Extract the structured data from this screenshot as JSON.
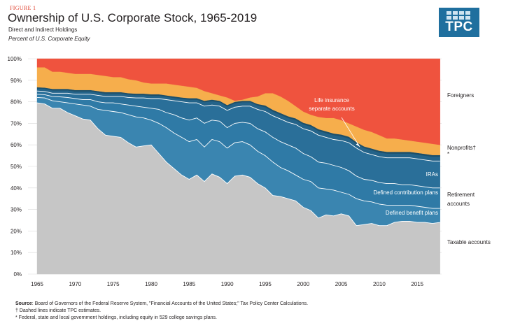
{
  "header": {
    "figure_label": "FIGURE 1",
    "title": "Ownership of U.S. Corporate Stock, 1965-2019",
    "subtitle": "Direct and Indirect Holdings",
    "unit_label": "Percent of U.S. Corporate Equity"
  },
  "logo": {
    "text": "TPC",
    "color": "#1f6f9e"
  },
  "chart_data": {
    "type": "area",
    "stacking": "cumulative",
    "x": [
      1965,
      1966,
      1967,
      1968,
      1969,
      1970,
      1971,
      1972,
      1973,
      1974,
      1975,
      1976,
      1977,
      1978,
      1979,
      1980,
      1981,
      1982,
      1983,
      1984,
      1985,
      1986,
      1987,
      1988,
      1989,
      1990,
      1991,
      1992,
      1993,
      1994,
      1995,
      1996,
      1997,
      1998,
      1999,
      2000,
      2001,
      2002,
      2003,
      2004,
      2005,
      2006,
      2007,
      2008,
      2009,
      2010,
      2011,
      2012,
      2013,
      2014,
      2015,
      2016,
      2017,
      2018
    ],
    "xlim": [
      1963.8,
      2018.2
    ],
    "x_ticks": [
      "1965",
      "1970",
      "1975",
      "1980",
      "1985",
      "1990",
      "1995",
      "2000",
      "2005",
      "2010",
      "2015"
    ],
    "ylim": [
      0,
      100
    ],
    "y_ticks": [
      "0%",
      "10%",
      "20%",
      "30%",
      "40%",
      "50%",
      "60%",
      "70%",
      "80%",
      "90%",
      "100%"
    ],
    "grid": "horizontal",
    "series": [
      {
        "name": "Taxable accounts",
        "color": "#c6c6c6",
        "values": [
          79.5,
          79,
          77,
          77,
          75,
          73.5,
          72,
          71.5,
          67.5,
          64.5,
          64,
          63.5,
          61,
          59,
          59.5,
          60,
          56,
          52,
          49,
          46,
          44,
          46,
          43,
          46.5,
          45,
          42,
          45.5,
          46,
          45,
          42,
          40,
          36.5,
          36,
          35,
          34,
          31,
          29.5,
          26,
          27.5,
          27,
          28,
          27,
          22.5,
          23,
          23.5,
          22.5,
          22.5,
          24,
          24.5,
          24.5,
          24,
          24,
          23.5,
          24
        ]
      },
      {
        "name": "Defined benefit plans",
        "color": "#3a85b0",
        "values": [
          82,
          81.8,
          80.5,
          80,
          79.5,
          79,
          78.5,
          78,
          76.5,
          76,
          75.5,
          75,
          74,
          73,
          72.5,
          71.5,
          70,
          68,
          65.5,
          63.5,
          61.5,
          62.5,
          59,
          62.5,
          61.5,
          58.5,
          61,
          61.5,
          60,
          57,
          55,
          52,
          49.5,
          48,
          46,
          44,
          43,
          40,
          39.5,
          39,
          38,
          37,
          35,
          34,
          33.5,
          32.5,
          32,
          32,
          32,
          32,
          31.5,
          31,
          30.5,
          30.5
        ]
      },
      {
        "name": "Defined contribution plans",
        "color": "#2f7aa6",
        "values": [
          83.5,
          83.3,
          82.5,
          82.3,
          82,
          81.5,
          81,
          81,
          80,
          79.5,
          79.5,
          79,
          78.5,
          78,
          77.5,
          77,
          76.5,
          75,
          74,
          72.5,
          71.5,
          72.5,
          70,
          71.5,
          71,
          68,
          70,
          70.5,
          70,
          67.5,
          66,
          63.5,
          61.5,
          60,
          58.5,
          56,
          54.5,
          52,
          51.5,
          50.5,
          49.5,
          48,
          45.5,
          44,
          43.5,
          42.5,
          42,
          42,
          41.5,
          41.5,
          41,
          40.5,
          40,
          40
        ]
      },
      {
        "name": "IRAs",
        "color": "#2a6f99",
        "values": [
          85,
          84.8,
          84,
          84,
          84,
          83.5,
          83.5,
          83.5,
          83,
          82.5,
          82.5,
          82.5,
          82,
          81.8,
          81.8,
          81.5,
          81.5,
          81,
          80.5,
          80,
          79.5,
          79.5,
          78,
          78.5,
          78,
          76,
          77.5,
          78,
          78,
          76.5,
          75.5,
          73.5,
          72,
          70.5,
          69.5,
          67.5,
          66.5,
          64.5,
          63.5,
          62.5,
          62,
          61,
          58.5,
          56.5,
          55.5,
          54.5,
          54,
          54,
          54,
          54,
          53.5,
          53,
          52.5,
          52.5
        ]
      },
      {
        "name": "Life insurance separate accounts",
        "color": "#246389",
        "values": [
          86.2,
          86,
          85.3,
          85.3,
          85.3,
          84.8,
          84.8,
          84.8,
          84.3,
          83.8,
          83.8,
          83.8,
          83.3,
          83.1,
          83.1,
          82.8,
          82.8,
          82.3,
          81.8,
          81.3,
          81,
          81,
          79.8,
          80.3,
          79.8,
          77.8,
          79.3,
          79.8,
          79.8,
          78.3,
          77.5,
          75.5,
          74,
          72.5,
          71.5,
          69.5,
          68.5,
          66.5,
          65.5,
          64.5,
          64,
          63,
          60.5,
          58.5,
          57.5,
          56.5,
          56,
          56,
          56,
          56,
          55.5,
          55,
          54.5,
          54.5
        ]
      },
      {
        "name": "Nonprofits",
        "color": "#1c4f6a",
        "values": [
          86.8,
          86.6,
          86,
          86,
          86,
          85.5,
          85.5,
          85.5,
          85,
          84.5,
          84.5,
          84.5,
          84,
          83.8,
          83.8,
          83.5,
          83.5,
          83,
          82.5,
          82,
          81.7,
          81.7,
          80.5,
          81,
          80.5,
          78.5,
          80,
          80.5,
          80.5,
          79,
          78.3,
          76.3,
          74.8,
          73.3,
          72.3,
          70.3,
          69.3,
          67.3,
          66.3,
          65.3,
          64.8,
          63.8,
          61.3,
          59.3,
          58.3,
          57.3,
          56.8,
          56.8,
          56.8,
          56.8,
          56.3,
          55.8,
          55.3,
          55.3
        ]
      },
      {
        "name": "Nonprofits",
        "color": "#f6ae4c",
        "values": [
          96,
          96,
          94,
          94,
          93.5,
          93,
          93,
          93,
          92.5,
          92,
          91.5,
          91.5,
          90.5,
          90,
          89,
          88.5,
          88.5,
          88.5,
          88,
          87.5,
          87,
          86.5,
          85,
          84,
          83,
          82,
          80.5,
          81,
          82,
          82.5,
          84,
          84,
          82.5,
          80.5,
          78,
          75.5,
          74,
          73,
          72.5,
          72.5,
          71.5,
          70,
          68.5,
          67,
          66,
          64.5,
          63,
          63,
          62.5,
          62,
          61.5,
          61,
          60.5,
          60
        ]
      },
      {
        "name": "Foreigners",
        "color": "#ef533e",
        "values": [
          100,
          100,
          100,
          100,
          100,
          100,
          100,
          100,
          100,
          100,
          100,
          100,
          100,
          100,
          100,
          100,
          100,
          100,
          100,
          100,
          100,
          100,
          100,
          100,
          100,
          100,
          100,
          100,
          100,
          100,
          100,
          100,
          100,
          100,
          100,
          100,
          100,
          100,
          100,
          100,
          100,
          100,
          100,
          100,
          100,
          100,
          100,
          100,
          100,
          100,
          100,
          100,
          100,
          100
        ]
      }
    ],
    "boundary_lines": [
      1,
      2,
      3,
      4
    ],
    "legend": {
      "foreigners": "Foreigners",
      "nonprofits": "Nonprofits†",
      "nonprofits_mark": "*",
      "retirement_1": "Retirement",
      "retirement_2": "accounts",
      "taxable": "Taxable accounts"
    },
    "annotations": {
      "life_insurance_1": "Life insurance",
      "life_insurance_2": "separate accounts",
      "iras": "IRAs",
      "defined_contribution": "Defined contribution plans",
      "defined_benefit": "Defined benefit plans"
    }
  },
  "footer": {
    "source_label": "Source",
    "source_text": ": Board of Governors of the Federal Reserve System, \"Financial Accounts of the United States;\" Tax Policy Center Calculations.",
    "dagger_note": "† Dashed lines indicate TPC estimates.",
    "star_note": "* Federal, state and local government holdings, including equity in 529 college savings plans."
  }
}
